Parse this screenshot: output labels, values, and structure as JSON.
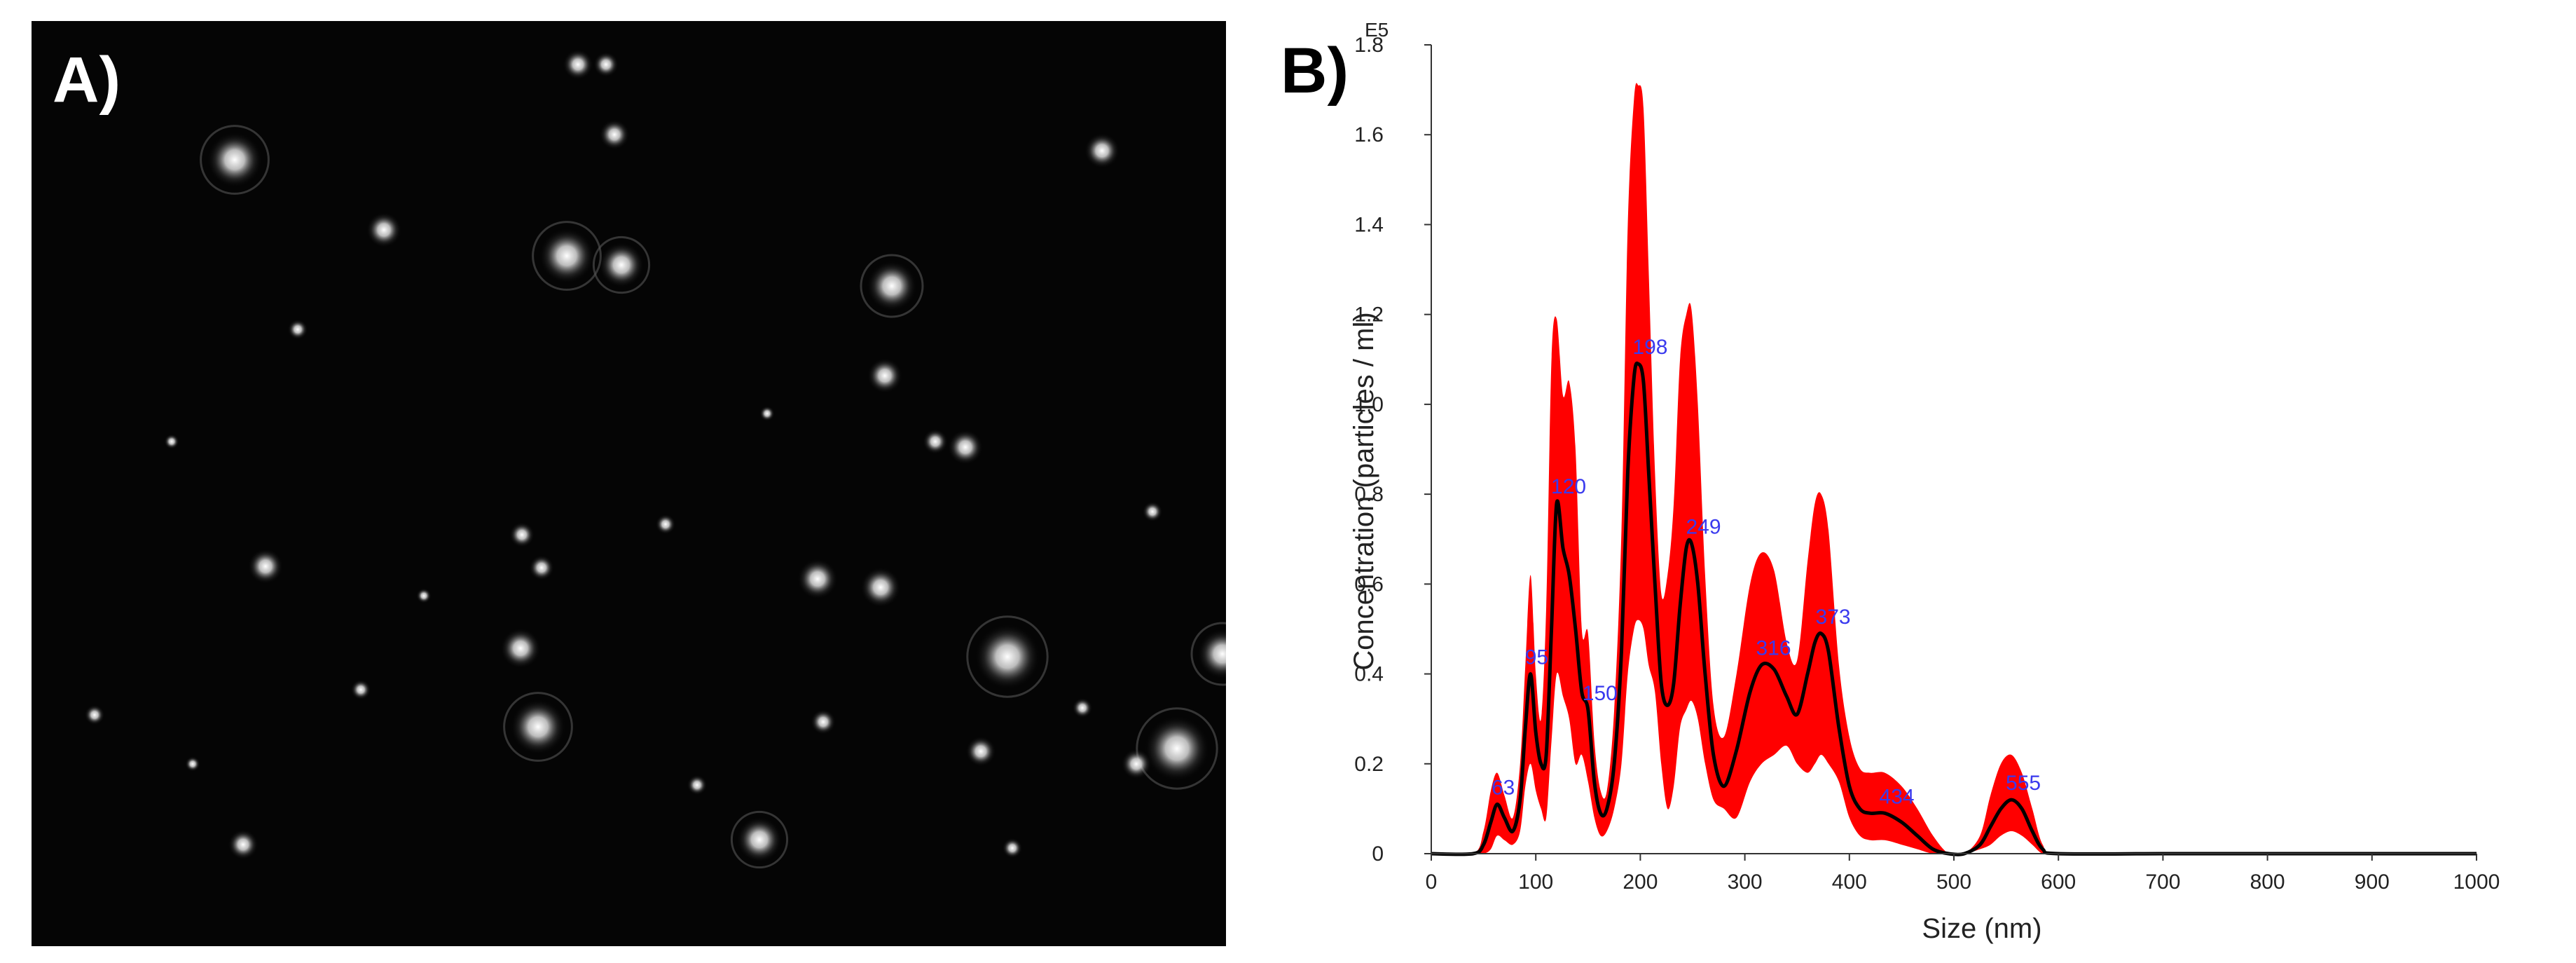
{
  "panels": {
    "a_label": "A)",
    "b_label": "B)"
  },
  "image_a": {
    "description_colors": {
      "background": "#050505",
      "particle": "#ffffff"
    }
  },
  "chart_data": {
    "type": "area",
    "xlabel": "Size (nm)",
    "ylabel": "Concentration (particles / ml)",
    "y_exponent_label": "E5",
    "xlim": [
      0,
      1000
    ],
    "ylim": [
      0,
      1.8
    ],
    "x_ticks": [
      "0",
      "100",
      "200",
      "300",
      "400",
      "500",
      "600",
      "700",
      "800",
      "900",
      "1000"
    ],
    "y_ticks": [
      "0",
      "0.2",
      "0.4",
      "0.6",
      "0.8",
      "1.0",
      "1.2",
      "1.4",
      "1.6",
      "1.8"
    ],
    "grid": false,
    "colors": {
      "band": "#ff0000",
      "mean_line": "#000000",
      "peak_labels": "#3a3aee"
    },
    "series": [
      {
        "role": "mean",
        "x": [
          0,
          40,
          50,
          57,
          63,
          70,
          78,
          85,
          90,
          95,
          100,
          105,
          110,
          115,
          120,
          126,
          132,
          138,
          144,
          150,
          156,
          162,
          168,
          175,
          182,
          188,
          194,
          198,
          203,
          208,
          214,
          220,
          226,
          232,
          238,
          244,
          249,
          255,
          262,
          270,
          280,
          292,
          305,
          316,
          328,
          340,
          350,
          360,
          367,
          373,
          380,
          390,
          400,
          410,
          420,
          434,
          450,
          465,
          480,
          495,
          510,
          525,
          535,
          545,
          555,
          565,
          575,
          585,
          600,
          700,
          800,
          900,
          1000
        ],
        "values": [
          0,
          0,
          0.02,
          0.07,
          0.11,
          0.08,
          0.05,
          0.12,
          0.28,
          0.4,
          0.27,
          0.2,
          0.22,
          0.5,
          0.78,
          0.68,
          0.62,
          0.5,
          0.36,
          0.32,
          0.16,
          0.09,
          0.1,
          0.2,
          0.45,
          0.85,
          1.06,
          1.09,
          1.05,
          0.85,
          0.6,
          0.38,
          0.33,
          0.38,
          0.55,
          0.68,
          0.69,
          0.6,
          0.4,
          0.22,
          0.15,
          0.23,
          0.36,
          0.42,
          0.41,
          0.35,
          0.31,
          0.4,
          0.47,
          0.49,
          0.45,
          0.28,
          0.15,
          0.1,
          0.09,
          0.09,
          0.07,
          0.04,
          0.01,
          0,
          0,
          0.02,
          0.06,
          0.1,
          0.12,
          0.1,
          0.05,
          0.01,
          0,
          0,
          0,
          0,
          0
        ]
      },
      {
        "role": "upper_band",
        "x": [
          0,
          40,
          50,
          57,
          63,
          70,
          78,
          85,
          90,
          95,
          100,
          105,
          110,
          115,
          120,
          126,
          132,
          138,
          144,
          150,
          156,
          162,
          168,
          175,
          182,
          188,
          194,
          198,
          203,
          208,
          214,
          220,
          226,
          232,
          238,
          244,
          249,
          255,
          262,
          270,
          280,
          292,
          305,
          316,
          328,
          340,
          350,
          360,
          367,
          373,
          380,
          390,
          400,
          410,
          420,
          434,
          450,
          465,
          480,
          495,
          510,
          525,
          535,
          545,
          555,
          565,
          575,
          585,
          600,
          700,
          800,
          900,
          1000
        ],
        "values": [
          0,
          0,
          0.05,
          0.14,
          0.18,
          0.13,
          0.08,
          0.2,
          0.42,
          0.62,
          0.4,
          0.3,
          0.55,
          1.1,
          1.19,
          1.02,
          1.05,
          0.9,
          0.5,
          0.49,
          0.25,
          0.14,
          0.14,
          0.32,
          0.72,
          1.4,
          1.68,
          1.71,
          1.66,
          1.3,
          0.85,
          0.58,
          0.62,
          0.78,
          1.1,
          1.2,
          1.21,
          1.0,
          0.62,
          0.33,
          0.26,
          0.4,
          0.6,
          0.67,
          0.63,
          0.47,
          0.43,
          0.65,
          0.78,
          0.8,
          0.72,
          0.42,
          0.26,
          0.19,
          0.18,
          0.18,
          0.15,
          0.1,
          0.04,
          0,
          0,
          0.04,
          0.13,
          0.2,
          0.22,
          0.18,
          0.1,
          0.02,
          0,
          0,
          0,
          0,
          0
        ]
      },
      {
        "role": "lower_band",
        "x": [
          0,
          40,
          50,
          57,
          63,
          70,
          78,
          85,
          90,
          95,
          100,
          105,
          110,
          115,
          120,
          126,
          132,
          138,
          144,
          150,
          156,
          162,
          168,
          175,
          182,
          188,
          194,
          198,
          203,
          208,
          214,
          220,
          226,
          232,
          238,
          244,
          249,
          255,
          262,
          270,
          280,
          292,
          305,
          316,
          328,
          340,
          350,
          360,
          367,
          373,
          380,
          390,
          400,
          410,
          420,
          434,
          450,
          465,
          480,
          495,
          510,
          525,
          535,
          545,
          555,
          565,
          575,
          585,
          600,
          700,
          800,
          900,
          1000
        ],
        "values": [
          0,
          0,
          0,
          0.01,
          0.04,
          0.03,
          0.02,
          0.05,
          0.15,
          0.2,
          0.14,
          0.1,
          0.08,
          0.25,
          0.4,
          0.35,
          0.3,
          0.2,
          0.22,
          0.16,
          0.08,
          0.04,
          0.05,
          0.1,
          0.2,
          0.4,
          0.5,
          0.52,
          0.5,
          0.42,
          0.36,
          0.2,
          0.1,
          0.15,
          0.28,
          0.32,
          0.34,
          0.3,
          0.2,
          0.12,
          0.1,
          0.08,
          0.16,
          0.2,
          0.22,
          0.24,
          0.2,
          0.18,
          0.2,
          0.22,
          0.2,
          0.16,
          0.08,
          0.04,
          0.03,
          0.03,
          0.02,
          0.01,
          0,
          0,
          0,
          0.01,
          0.02,
          0.04,
          0.05,
          0.04,
          0.02,
          0,
          0,
          0,
          0,
          0,
          0
        ]
      }
    ],
    "peak_labels": [
      {
        "x": 63,
        "y": 0.11,
        "text": "63"
      },
      {
        "x": 95,
        "y": 0.4,
        "text": "95"
      },
      {
        "x": 120,
        "y": 0.78,
        "text": "120"
      },
      {
        "x": 150,
        "y": 0.32,
        "text": "150"
      },
      {
        "x": 198,
        "y": 1.09,
        "text": "198"
      },
      {
        "x": 249,
        "y": 0.69,
        "text": "249"
      },
      {
        "x": 316,
        "y": 0.42,
        "text": "316"
      },
      {
        "x": 373,
        "y": 0.49,
        "text": "373"
      },
      {
        "x": 434,
        "y": 0.09,
        "text": "434"
      },
      {
        "x": 555,
        "y": 0.12,
        "text": "555"
      }
    ]
  }
}
